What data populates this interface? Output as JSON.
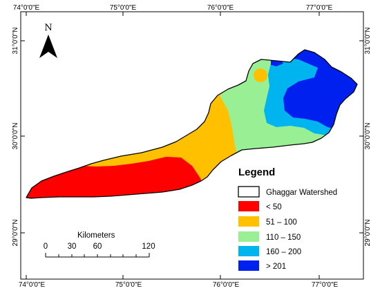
{
  "map": {
    "graticule": {
      "top_labels": [
        "74°0'0\"E",
        "75°0'0\"E",
        "76°0'0\"E",
        "77°0'0\"E"
      ],
      "bottom_labels": [
        "74°0'0\"E",
        "75°0'0\"E",
        "76°0'0\"E",
        "77°0'0\"E"
      ],
      "left_labels": [
        "31°0'0\"N",
        "30°0'0\"N",
        "29°0'0\"N"
      ],
      "right_labels": [
        "31°0'0\"N",
        "30°0'0\"N",
        "29°0'0\"N"
      ]
    },
    "north_arrow": {
      "label": "N",
      "icon": "north-arrow-icon"
    },
    "legend": {
      "title": "Legend",
      "items": [
        {
          "label": "Ghaggar Watershed",
          "color": "#ffffff",
          "outline": true
        },
        {
          "label": "< 50",
          "color": "#ff0000"
        },
        {
          "label": "51 – 100",
          "color": "#ffc000"
        },
        {
          "label": "110 – 150",
          "color": "#99f094"
        },
        {
          "label": "160 – 200",
          "color": "#00b4f0"
        },
        {
          "label": "> 201",
          "color": "#0020f0"
        }
      ]
    },
    "scale_bar": {
      "title": "Kilometers",
      "labels": [
        "0",
        "30",
        "60",
        "120"
      ]
    },
    "colors": {
      "red_zone": "#ff0000",
      "orange_zone": "#ffc000",
      "green_zone": "#99f094",
      "cyan_zone": "#00b4f0",
      "blue_zone": "#0020f0"
    }
  }
}
